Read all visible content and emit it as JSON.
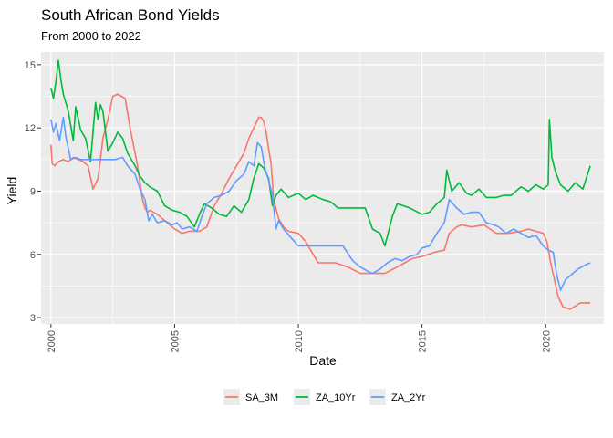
{
  "chart_data": {
    "type": "line",
    "title": "South African Bond Yields",
    "subtitle": "From 2000 to 2022",
    "xlabel": "Date",
    "ylabel": "Yield",
    "xlim": [
      1999.6,
      2022.35
    ],
    "ylim": [
      2.7,
      15.6
    ],
    "x_ticks": [
      2000,
      2005,
      2010,
      2015,
      2020
    ],
    "x_tick_labels": [
      "2000",
      "2005",
      "2010",
      "2015",
      "2020"
    ],
    "y_ticks": [
      3,
      6,
      9,
      12,
      15
    ],
    "y_tick_labels": [
      "3",
      "6",
      "9",
      "12",
      "15"
    ],
    "grid": true,
    "legend_position": "bottom",
    "series": [
      {
        "name": "SA_3M",
        "color": "#F8766D",
        "x": [
          2000.0,
          2000.05,
          2000.15,
          2000.3,
          2000.5,
          2000.7,
          2000.9,
          2001.1,
          2001.3,
          2001.5,
          2001.7,
          2001.9,
          2002.0,
          2002.1,
          2002.3,
          2002.5,
          2002.7,
          2002.85,
          2003.0,
          2003.2,
          2003.4,
          2003.5,
          2003.6,
          2003.7,
          2003.8,
          2003.9,
          2004.0,
          2004.3,
          2004.6,
          2005.0,
          2005.3,
          2005.6,
          2006.0,
          2006.3,
          2006.6,
          2006.9,
          2007.2,
          2007.5,
          2007.8,
          2008.0,
          2008.2,
          2008.4,
          2008.5,
          2008.6,
          2008.7,
          2008.8,
          2008.9,
          2009.0,
          2009.2,
          2009.4,
          2009.6,
          2010.0,
          2010.3,
          2010.6,
          2010.8,
          2011.0,
          2011.5,
          2012.0,
          2012.5,
          2012.7,
          2013.0,
          2013.5,
          2014.0,
          2014.3,
          2014.6,
          2015.0,
          2015.5,
          2015.9,
          2016.1,
          2016.4,
          2016.6,
          2017.0,
          2017.5,
          2018.0,
          2018.5,
          2019.0,
          2019.3,
          2019.6,
          2019.9,
          2020.05,
          2020.2,
          2020.35,
          2020.5,
          2020.7,
          2021.0,
          2021.4,
          2021.8
        ],
        "values": [
          11.2,
          10.3,
          10.2,
          10.4,
          10.5,
          10.4,
          10.6,
          10.5,
          10.4,
          10.2,
          9.1,
          9.6,
          10.5,
          11.5,
          12.4,
          13.5,
          13.6,
          13.5,
          13.4,
          12.0,
          10.8,
          10.2,
          9.4,
          8.6,
          8.2,
          8.0,
          8.1,
          7.9,
          7.6,
          7.2,
          7.0,
          7.1,
          7.1,
          7.3,
          8.3,
          8.9,
          9.6,
          10.2,
          10.8,
          11.5,
          12.0,
          12.5,
          12.5,
          12.3,
          11.8,
          11.0,
          10.3,
          8.6,
          7.7,
          7.3,
          7.1,
          7.0,
          6.6,
          6.0,
          5.6,
          5.6,
          5.6,
          5.4,
          5.1,
          5.1,
          5.1,
          5.1,
          5.4,
          5.6,
          5.8,
          5.9,
          6.1,
          6.2,
          7.0,
          7.3,
          7.4,
          7.3,
          7.4,
          7.0,
          7.0,
          7.1,
          7.2,
          7.1,
          7.0,
          6.6,
          5.6,
          4.8,
          4.0,
          3.5,
          3.4,
          3.7,
          3.7
        ]
      },
      {
        "name": "ZA_10Yr",
        "color": "#00BA38",
        "x": [
          2000.0,
          2000.1,
          2000.2,
          2000.3,
          2000.4,
          2000.5,
          2000.7,
          2000.9,
          2001.0,
          2001.2,
          2001.4,
          2001.6,
          2001.8,
          2001.9,
          2002.0,
          2002.1,
          2002.3,
          2002.5,
          2002.7,
          2002.9,
          2003.1,
          2003.4,
          2003.6,
          2003.8,
          2004.0,
          2004.3,
          2004.6,
          2004.9,
          2005.2,
          2005.5,
          2005.8,
          2006.0,
          2006.2,
          2006.5,
          2006.8,
          2007.1,
          2007.4,
          2007.7,
          2008.0,
          2008.2,
          2008.4,
          2008.6,
          2008.8,
          2008.95,
          2009.1,
          2009.3,
          2009.6,
          2010.0,
          2010.3,
          2010.6,
          2011.0,
          2011.3,
          2011.6,
          2011.9,
          2012.3,
          2012.7,
          2013.0,
          2013.3,
          2013.5,
          2013.8,
          2014.0,
          2014.5,
          2015.0,
          2015.3,
          2015.6,
          2015.9,
          2016.0,
          2016.2,
          2016.5,
          2016.8,
          2017.0,
          2017.3,
          2017.6,
          2018.0,
          2018.3,
          2018.6,
          2019.0,
          2019.3,
          2019.6,
          2019.9,
          2020.1,
          2020.15,
          2020.25,
          2020.4,
          2020.6,
          2020.9,
          2021.2,
          2021.5,
          2021.8
        ],
        "values": [
          13.9,
          13.4,
          14.2,
          15.2,
          14.3,
          13.6,
          12.8,
          11.4,
          13.0,
          11.9,
          11.5,
          10.4,
          13.2,
          12.4,
          13.1,
          12.8,
          10.9,
          11.3,
          11.8,
          11.5,
          10.8,
          10.2,
          9.7,
          9.4,
          9.2,
          9.0,
          8.3,
          8.1,
          8.0,
          7.8,
          7.3,
          7.9,
          8.4,
          8.2,
          7.9,
          7.8,
          8.3,
          8.0,
          8.6,
          9.6,
          10.3,
          10.1,
          9.6,
          8.3,
          8.8,
          9.1,
          8.7,
          8.9,
          8.6,
          8.8,
          8.6,
          8.5,
          8.2,
          8.2,
          8.2,
          8.2,
          7.2,
          7.0,
          6.4,
          7.8,
          8.4,
          8.2,
          7.9,
          8.0,
          8.4,
          8.7,
          10.0,
          9.0,
          9.4,
          8.9,
          8.8,
          9.1,
          8.7,
          8.7,
          8.8,
          8.8,
          9.2,
          9.0,
          9.3,
          9.1,
          9.3,
          12.4,
          10.6,
          9.9,
          9.3,
          9.0,
          9.4,
          9.1,
          10.2
        ]
      },
      {
        "name": "ZA_2Yr",
        "color": "#619CFF",
        "x": [
          2000.0,
          2000.1,
          2000.2,
          2000.35,
          2000.5,
          2000.6,
          2000.8,
          2001.0,
          2001.2,
          2001.4,
          2001.6,
          2001.8,
          2002.0,
          2002.3,
          2002.6,
          2002.9,
          2003.1,
          2003.4,
          2003.6,
          2003.8,
          2003.95,
          2004.1,
          2004.3,
          2004.6,
          2004.9,
          2005.1,
          2005.3,
          2005.6,
          2005.9,
          2006.1,
          2006.3,
          2006.6,
          2006.9,
          2007.2,
          2007.5,
          2007.8,
          2008.0,
          2008.2,
          2008.35,
          2008.5,
          2008.65,
          2008.8,
          2008.95,
          2009.1,
          2009.2,
          2009.4,
          2009.7,
          2010.0,
          2010.3,
          2010.6,
          2011.0,
          2011.4,
          2011.8,
          2012.2,
          2012.5,
          2012.8,
          2013.0,
          2013.3,
          2013.6,
          2013.9,
          2014.2,
          2014.5,
          2014.8,
          2015.0,
          2015.3,
          2015.6,
          2015.9,
          2016.1,
          2016.4,
          2016.7,
          2017.0,
          2017.3,
          2017.6,
          2017.9,
          2018.1,
          2018.4,
          2018.7,
          2019.0,
          2019.3,
          2019.6,
          2019.9,
          2020.1,
          2020.3,
          2020.45,
          2020.6,
          2020.8,
          2021.0,
          2021.3,
          2021.6,
          2021.8
        ],
        "values": [
          12.4,
          11.8,
          12.2,
          11.4,
          12.5,
          11.6,
          10.5,
          10.6,
          10.5,
          10.5,
          10.5,
          10.5,
          10.5,
          10.5,
          10.5,
          10.6,
          10.2,
          9.8,
          9.1,
          8.6,
          7.6,
          7.9,
          7.5,
          7.6,
          7.4,
          7.5,
          7.2,
          7.3,
          7.1,
          7.8,
          8.4,
          8.7,
          8.8,
          9.0,
          9.5,
          9.8,
          10.4,
          10.2,
          11.3,
          11.1,
          10.1,
          9.5,
          8.8,
          7.2,
          7.6,
          7.2,
          6.8,
          6.4,
          6.4,
          6.4,
          6.4,
          6.4,
          6.4,
          5.7,
          5.4,
          5.2,
          5.1,
          5.3,
          5.6,
          5.8,
          5.7,
          5.9,
          6.0,
          6.3,
          6.4,
          7.0,
          7.5,
          8.6,
          8.2,
          7.9,
          8.0,
          8.0,
          7.5,
          7.4,
          7.3,
          7.0,
          7.2,
          7.0,
          6.8,
          6.9,
          6.4,
          6.2,
          6.1,
          5.0,
          4.3,
          4.8,
          5.0,
          5.3,
          5.5,
          5.6
        ]
      }
    ]
  }
}
